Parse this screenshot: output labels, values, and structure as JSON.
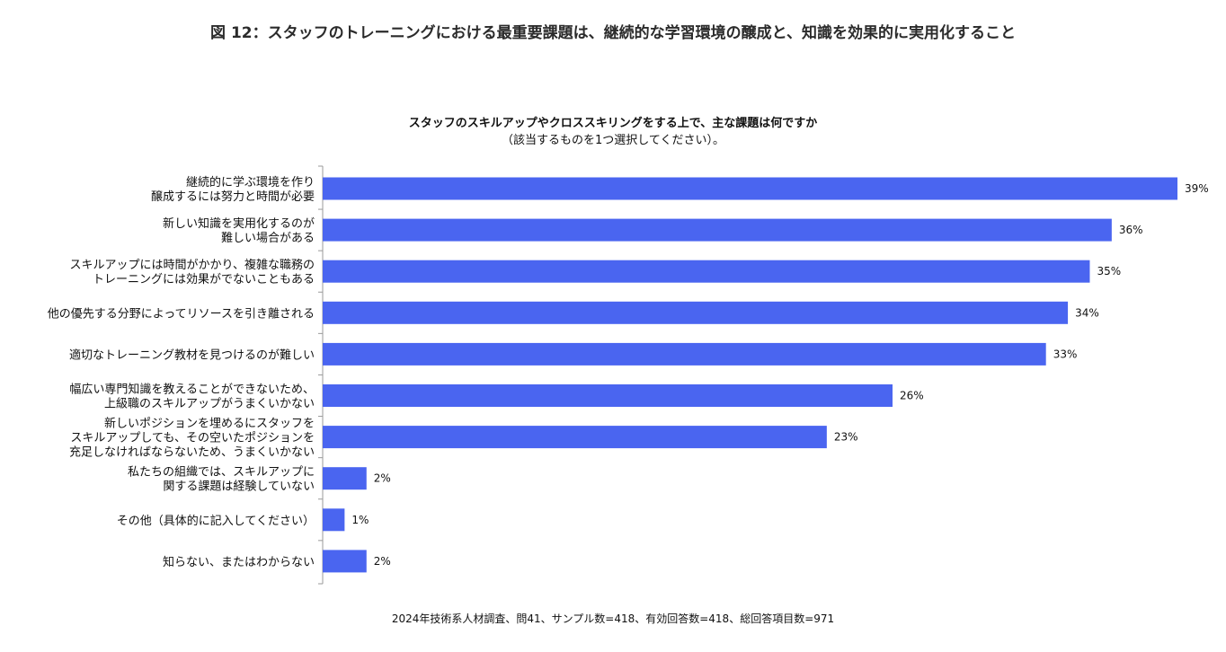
{
  "figure_title": "図 12：スタッフのトレーニングにおける最重要課題は、継続的な学習環境の醸成と、知識を効果的に実用化すること",
  "footer": "2024年技術系人材調査、問41、サンプル数=418、有効回答数=418、総回答項目数=971",
  "colors": {
    "bar": "#4a65f0",
    "axis": "#999999"
  },
  "chart_data": {
    "type": "bar",
    "orientation": "horizontal",
    "title": "スタッフのスキルアップやクロススキリングをする上で、主な課題は何ですか",
    "subtitle": "（該当するものを1つ選択してください）。",
    "xlim": [
      0,
      39
    ],
    "grid": false,
    "categories": [
      [
        "継続的に学ぶ環境を作り",
        "醸成するには努力と時間が必要"
      ],
      [
        "新しい知識を実用化するのが",
        "難しい場合がある"
      ],
      [
        "スキルアップには時間がかかり、複雑な職務の",
        "トレーニングには効果がでないこともある"
      ],
      [
        "他の優先する分野によってリソースを引き離される"
      ],
      [
        "適切なトレーニング教材を見つけるのが難しい"
      ],
      [
        "幅広い専門知識を教えることができないため、",
        "上級職のスキルアップがうまくいかない"
      ],
      [
        "新しいポジションを埋めるにスタッフを",
        "スキルアップしても、その空いたポジションを",
        "充足しなければならないため、うまくいかない"
      ],
      [
        "私たちの組織では、スキルアップに",
        "関する課題は経験していない"
      ],
      [
        "その他（具体的に記入してください）"
      ],
      [
        "知らない、またはわからない"
      ]
    ],
    "values": [
      39,
      36,
      35,
      34,
      33,
      26,
      23,
      2,
      1,
      2
    ],
    "value_labels": [
      "39%",
      "36%",
      "35%",
      "34%",
      "33%",
      "26%",
      "23%",
      "2%",
      "1%",
      "2%"
    ]
  }
}
